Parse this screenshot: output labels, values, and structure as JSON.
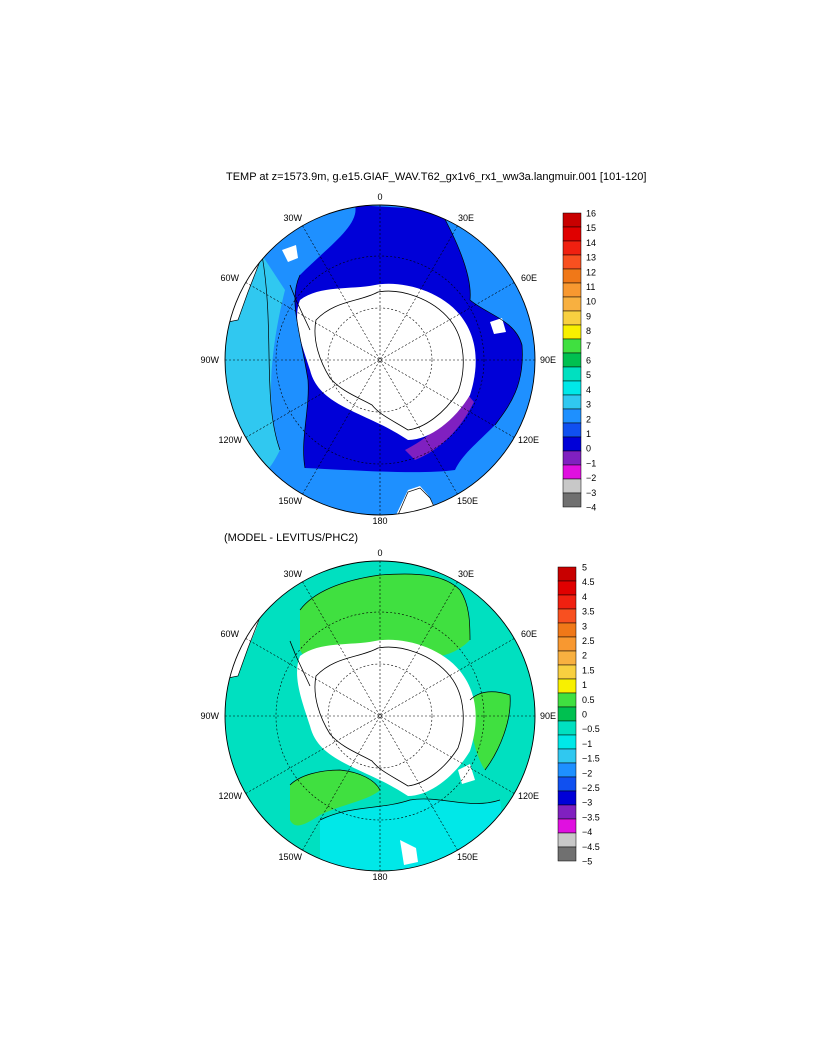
{
  "map1": {
    "title": "TEMP at z=1573.9m, g.e15.GIAF_WAV.T62_gx1v6_rx1_ww3a.langmuir.001 [101-120]",
    "lon_labels": [
      "0",
      "30E",
      "60E",
      "90E",
      "120E",
      "150E",
      "180",
      "150W",
      "120W",
      "90W",
      "60W",
      "30W"
    ],
    "colorbar": {
      "labels": [
        "16",
        "15",
        "14",
        "13",
        "12",
        "11",
        "10",
        "9",
        "8",
        "7",
        "6",
        "5",
        "4",
        "3",
        "2",
        "1",
        "0",
        "−1",
        "−2",
        "−3",
        "−4"
      ],
      "colors": [
        "#c80000",
        "#e00000",
        "#f02010",
        "#f85020",
        "#f07818",
        "#f89830",
        "#f8b040",
        "#f8d040",
        "#f8f000",
        "#40e040",
        "#00c050",
        "#00e0c0",
        "#00e8e8",
        "#30c8f0",
        "#1e90ff",
        "#1050f0",
        "#0000d8",
        "#8020c0",
        "#e010e0",
        "#c8c8c8",
        "#707070"
      ]
    }
  },
  "map2": {
    "title": "(MODEL - LEVITUS/PHC2)",
    "lon_labels": [
      "0",
      "30E",
      "60E",
      "90E",
      "120E",
      "150E",
      "180",
      "150W",
      "120W",
      "90W",
      "60W",
      "30W"
    ],
    "colorbar": {
      "labels": [
        "5",
        "4.5",
        "4",
        "3.5",
        "3",
        "2.5",
        "2",
        "1.5",
        "1",
        "0.5",
        "0",
        "−0.5",
        "−1",
        "−1.5",
        "−2",
        "−2.5",
        "−3",
        "−3.5",
        "−4",
        "−4.5",
        "−5"
      ],
      "colors": [
        "#c80000",
        "#e00000",
        "#f02010",
        "#f85020",
        "#f07818",
        "#f89830",
        "#f8b040",
        "#f8d040",
        "#f8f000",
        "#40e040",
        "#00c050",
        "#00e0c0",
        "#00e8e8",
        "#30c8f0",
        "#1e90ff",
        "#1050f0",
        "#0000d8",
        "#8020c0",
        "#e010e0",
        "#c8c8c8",
        "#707070"
      ]
    }
  }
}
